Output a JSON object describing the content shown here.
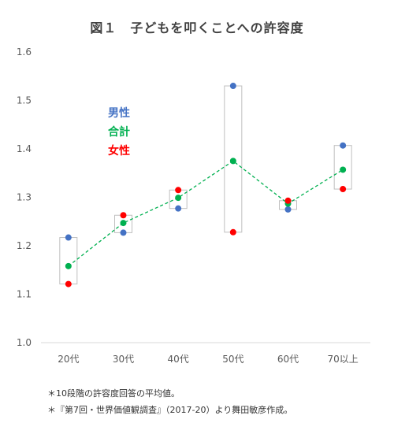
{
  "chart_data": {
    "type": "line",
    "title": "図１　子どもを叩くことへの許容度",
    "categories": [
      "20代",
      "30代",
      "40代",
      "50代",
      "60代",
      "70以上"
    ],
    "ylim": [
      1.0,
      1.6
    ],
    "yticks": [
      "1.0",
      "1.1",
      "1.2",
      "1.3",
      "1.4",
      "1.5",
      "1.6"
    ],
    "grid": false,
    "legend_position": "upper-left",
    "series": [
      {
        "name": "男性",
        "color": "#4472C4",
        "values": [
          1.217,
          1.227,
          1.277,
          1.53,
          1.275,
          1.407
        ]
      },
      {
        "name": "合計",
        "color": "#00B050",
        "values": [
          1.158,
          1.247,
          1.299,
          1.375,
          1.287,
          1.357
        ],
        "line": "dashed"
      },
      {
        "name": "女性",
        "color": "#FF0000",
        "values": [
          1.121,
          1.263,
          1.315,
          1.228,
          1.293,
          1.317
        ]
      }
    ],
    "range_box_color": "#BFBFBF"
  },
  "notes": [
    "＊10段階の許容度回答の平均値。",
    "＊『第7回・世界価値観調査』（2017-20）より舞田敏彦作成。"
  ]
}
